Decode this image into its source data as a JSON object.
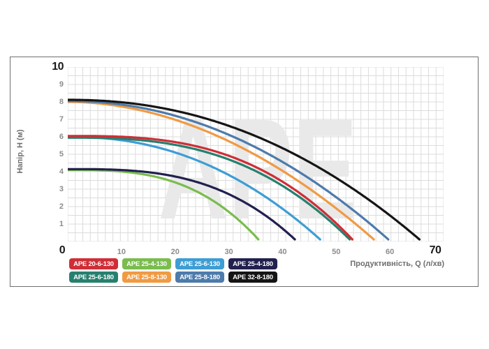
{
  "watermark": "APE",
  "axes": {
    "y_title": "Напір, H (м)",
    "x_title": "Продуктивність, Q (л/хв)",
    "y_axis_max_label": "10",
    "origin_label": "0",
    "x_axis_max_label": "70",
    "y_ticks": [
      9,
      8,
      7,
      6,
      5,
      4,
      3,
      2,
      1
    ],
    "x_ticks": [
      10,
      20,
      30,
      40,
      50,
      60
    ]
  },
  "colors": {
    "grid": "#dcdcdc",
    "watermark": "#e9e9e9",
    "tick_minor": "#8c8c8c",
    "tick_major": "#1a1a1a",
    "axis_title": "#6e6e6e",
    "frame_border": "#6f6f6f"
  },
  "chart_data": {
    "type": "line",
    "title": "",
    "xlabel": "Продуктивність, Q (л/хв)",
    "ylabel": "Напір, H (м)",
    "xlim": [
      0,
      70
    ],
    "ylim": [
      0,
      10
    ],
    "grid": true,
    "legend_position": "bottom",
    "model_note": "head_m = h0 - ((h0 - h_end) / q_end^exp) * Q^exp, H in metres, Q in l/min",
    "h_end": 0.12,
    "series": [
      {
        "name": "APE 20-6-130",
        "color": "#cf2e36",
        "h0": 6.05,
        "q_end": 53.0,
        "exp": 2.9
      },
      {
        "name": "APE 25-4-130",
        "color": "#7abc4e",
        "h0": 4.1,
        "q_end": 35.5,
        "exp": 3.0
      },
      {
        "name": "APE 25-6-130",
        "color": "#3e9dd4",
        "h0": 6.0,
        "q_end": 47.0,
        "exp": 2.2
      },
      {
        "name": "APE 25-4-180",
        "color": "#22204e",
        "h0": 4.15,
        "q_end": 42.3,
        "exp": 3.0
      },
      {
        "name": "APE 25-6-180",
        "color": "#27806f",
        "h0": 5.95,
        "q_end": 52.5,
        "exp": 2.75
      },
      {
        "name": "APE 25-8-130",
        "color": "#f09a43",
        "h0": 8.0,
        "q_end": 57.0,
        "exp": 1.95
      },
      {
        "name": "APE 25-8-180",
        "color": "#4d7bab",
        "h0": 8.05,
        "q_end": 59.7,
        "exp": 2.05
      },
      {
        "name": "APE 32-8-180",
        "color": "#151515",
        "h0": 8.12,
        "q_end": 65.5,
        "exp": 2.15
      }
    ],
    "draw_order": [
      1,
      3,
      2,
      4,
      0,
      5,
      6,
      7
    ],
    "sampled_points_Q_vs_H": {
      "APE 32-8-180": [
        [
          0,
          8.1
        ],
        [
          30,
          6.6
        ],
        [
          65.5,
          0.1
        ]
      ],
      "APE 25-8-180": [
        [
          0,
          8.05
        ],
        [
          30,
          6.1
        ],
        [
          59.7,
          0.1
        ]
      ],
      "APE 25-8-130": [
        [
          0,
          8.0
        ],
        [
          30,
          5.7
        ],
        [
          57,
          0.1
        ]
      ],
      "APE 20-6-130": [
        [
          0,
          6.05
        ],
        [
          30,
          4.9
        ],
        [
          53,
          0.1
        ]
      ],
      "APE 25-6-180": [
        [
          0,
          5.95
        ],
        [
          30,
          4.7
        ],
        [
          52.5,
          0.1
        ]
      ],
      "APE 25-6-130": [
        [
          0,
          6.0
        ],
        [
          30,
          3.8
        ],
        [
          47,
          0.1
        ]
      ],
      "APE 25-4-180": [
        [
          0,
          4.15
        ],
        [
          30,
          2.7
        ],
        [
          42.3,
          0.1
        ]
      ],
      "APE 25-4-130": [
        [
          0,
          4.1
        ],
        [
          30,
          1.7
        ],
        [
          35.5,
          0.1
        ]
      ]
    }
  },
  "legend": {
    "rows": [
      [
        "APE 20-6-130",
        "APE 25-4-130",
        "APE 25-6-130",
        "APE 25-4-180"
      ],
      [
        "APE 25-6-180",
        "APE 25-8-130",
        "APE 25-8-180",
        "APE 32-8-180"
      ]
    ]
  }
}
